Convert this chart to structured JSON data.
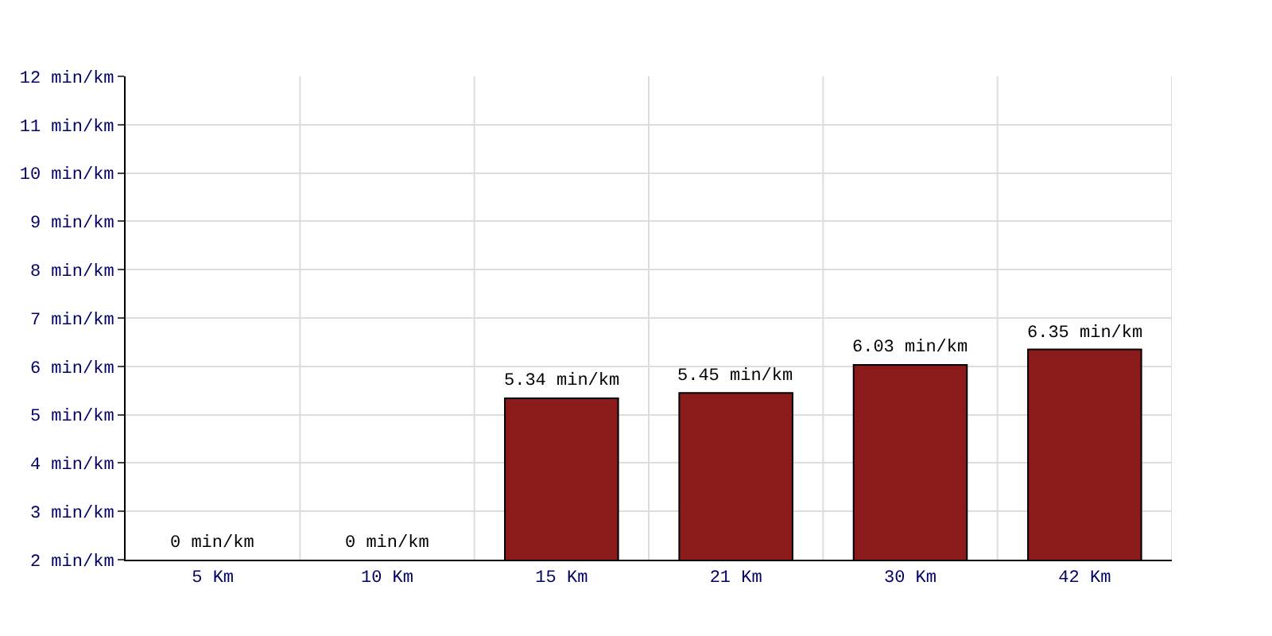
{
  "chart_data": {
    "type": "bar",
    "categories": [
      "5 Km",
      "10 Km",
      "15 Km",
      "21 Km",
      "30 Km",
      "42 Km"
    ],
    "values": [
      null,
      null,
      5.34,
      5.45,
      6.03,
      6.35
    ],
    "value_labels": [
      "0 min/km",
      "0 min/km",
      "5.34 min/km",
      "5.45 min/km",
      "6.03 min/km",
      "6.35 min/km"
    ],
    "color": "#8b1a1a",
    "ylim": [
      2,
      12
    ],
    "yticks": [
      {
        "value": 2,
        "label": "2 min/km"
      },
      {
        "value": 3,
        "label": "3 min/km"
      },
      {
        "value": 4,
        "label": "4 min/km"
      },
      {
        "value": 5,
        "label": "5 min/km"
      },
      {
        "value": 6,
        "label": "6 min/km"
      },
      {
        "value": 7,
        "label": "7 min/km"
      },
      {
        "value": 8,
        "label": "8 min/km"
      },
      {
        "value": 9,
        "label": "9 min/km"
      },
      {
        "value": 10,
        "label": "10 min/km"
      },
      {
        "value": 11,
        "label": "11 min/km"
      },
      {
        "value": 12,
        "label": "12 min/km"
      }
    ],
    "grid": true
  }
}
